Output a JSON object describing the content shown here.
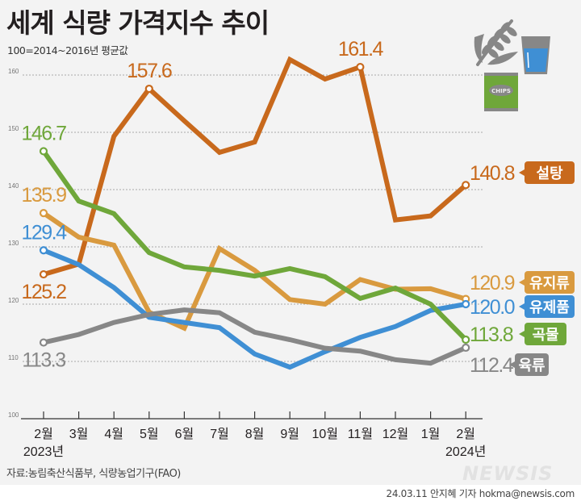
{
  "header": {
    "title": "세계 식량 가격지수 추이",
    "subtitle": "100=2014~2016년 평균값"
  },
  "footer": {
    "source": "자료:농림축산식품부, 식량농업기구(FAO)",
    "credit": "24.03.11 안지혜 기자 hokma@newsis.com",
    "watermark": "NEWSIS"
  },
  "icons": {
    "wheat": "wheat-icon",
    "glass": "milk-glass-icon",
    "chips": "chips-bag-icon",
    "chips_text": "CHIPS"
  },
  "chart_data": {
    "type": "line",
    "title": "세계 식량 가격지수 추이",
    "subtitle": "100=2014~2016년 평균값",
    "categories": [
      "2월",
      "3월",
      "4월",
      "5월",
      "6월",
      "7월",
      "8월",
      "9월",
      "10월",
      "11월",
      "12월",
      "1월",
      "2월"
    ],
    "year_labels": [
      {
        "index": 0,
        "label": "2023년"
      },
      {
        "index": 12,
        "label": "2024년"
      }
    ],
    "ylim": [
      100,
      160
    ],
    "yticks": [
      100,
      110,
      120,
      130,
      140,
      150,
      160
    ],
    "grid": true,
    "series": [
      {
        "name": "설탕",
        "color": "#c8691c",
        "values": [
          125.2,
          127.0,
          149.3,
          157.6,
          152.0,
          146.5,
          148.3,
          162.7,
          159.3,
          161.4,
          134.7,
          135.4,
          140.8
        ],
        "labels": [
          {
            "index": 0,
            "text": "125.2",
            "pos": "below"
          },
          {
            "index": 3,
            "text": "157.6",
            "pos": "above"
          },
          {
            "index": 9,
            "text": "161.4",
            "pos": "above"
          },
          {
            "index": 12,
            "text": "140.8",
            "pos": "end"
          }
        ]
      },
      {
        "name": "유지류",
        "color": "#d99a3f",
        "values": [
          135.9,
          131.7,
          130.3,
          118.6,
          115.8,
          129.7,
          125.9,
          120.8,
          120.0,
          124.3,
          122.6,
          122.7,
          120.9
        ],
        "labels": [
          {
            "index": 0,
            "text": "135.9",
            "pos": "above"
          },
          {
            "index": 12,
            "text": "120.9",
            "pos": "end"
          }
        ]
      },
      {
        "name": "유제품",
        "color": "#3f8fd4",
        "values": [
          129.4,
          126.9,
          122.9,
          117.7,
          116.8,
          115.9,
          111.3,
          109.0,
          111.7,
          114.2,
          116.1,
          118.9,
          120.0
        ],
        "labels": [
          {
            "index": 0,
            "text": "129.4",
            "pos": "above"
          },
          {
            "index": 12,
            "text": "120.0",
            "pos": "end"
          }
        ]
      },
      {
        "name": "곡물",
        "color": "#6fa73a",
        "values": [
          146.7,
          138.0,
          135.8,
          129.0,
          126.5,
          125.9,
          124.9,
          126.2,
          124.8,
          121.0,
          122.8,
          120.0,
          113.8
        ],
        "labels": [
          {
            "index": 0,
            "text": "146.7",
            "pos": "above"
          },
          {
            "index": 12,
            "text": "113.8",
            "pos": "end"
          }
        ]
      },
      {
        "name": "육류",
        "color": "#878787",
        "values": [
          113.3,
          114.7,
          116.8,
          118.2,
          119.0,
          118.5,
          115.1,
          113.8,
          112.3,
          111.8,
          110.3,
          109.7,
          112.4
        ],
        "labels": [
          {
            "index": 0,
            "text": "113.3",
            "pos": "below"
          },
          {
            "index": 12,
            "text": "112.4",
            "pos": "end"
          }
        ]
      }
    ]
  }
}
